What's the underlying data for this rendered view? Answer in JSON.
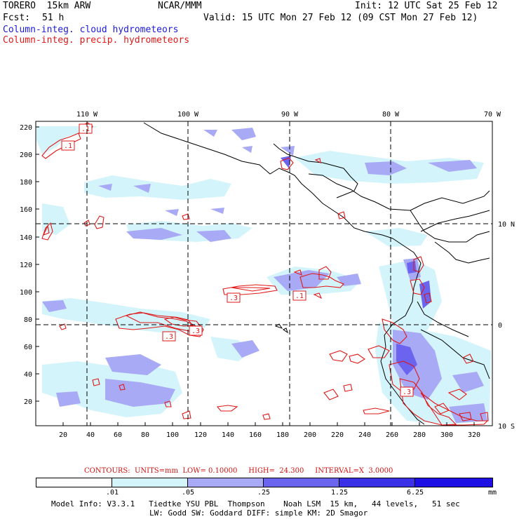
{
  "header": {
    "model": "TORERO  15km ARW",
    "center": "NCAR/MMM",
    "init": "Init: 12 UTC Sat 25 Feb 12",
    "fcst_label": "Fcst:",
    "fcst_hours": "51 h",
    "valid": "Valid: 15 UTC Mon 27 Feb 12 (09 CST Mon 27 Feb 12)",
    "field_cloud": "Column-integ. cloud hydrometeors",
    "field_precip": "Column-integ. precip. hydrometeors"
  },
  "colors": {
    "cloud": "#1a1ad8",
    "precip": "#e01818"
  },
  "top_lon_labels": [
    "110 W",
    "100 W",
    "90 W",
    "80 W",
    "70 W"
  ],
  "right_lat_labels": [
    "10 N",
    "0",
    "10 S"
  ],
  "y_ticks": [
    "220",
    "200",
    "180",
    "160",
    "140",
    "120",
    "100",
    "80",
    "60",
    "40",
    "20"
  ],
  "x_ticks": [
    "20",
    "40",
    "60",
    "80",
    "100",
    "120",
    "140",
    "160",
    "180",
    "200",
    "220",
    "240",
    "260",
    "280",
    "300",
    "320"
  ],
  "contour_labels": [
    ".1",
    ".1",
    ".3",
    ".1",
    ".3",
    ".3",
    ".3"
  ],
  "contour_info": "CONTOURS:  UNITS=mm  LOW= 0.10000     HIGH=  24.300     INTERVAL=X  3.0000",
  "colorbar": {
    "levels": [
      ".01",
      ".05",
      ".25",
      "1.25",
      "6.25"
    ],
    "unit": "mm",
    "colors": [
      "#ffffff",
      "#d4f4fc",
      "#a8aaf6",
      "#6a64ee",
      "#3a30e6",
      "#1e10e4"
    ]
  },
  "footer": {
    "line1": "Model Info: V3.3.1   Tiedtke YSU PBL  Thompson    Noah LSM  15 km,   44 levels,   51 sec",
    "line2": "LW: Godd SW: Goddard DIFF: simple KM: 2D Smagor"
  }
}
